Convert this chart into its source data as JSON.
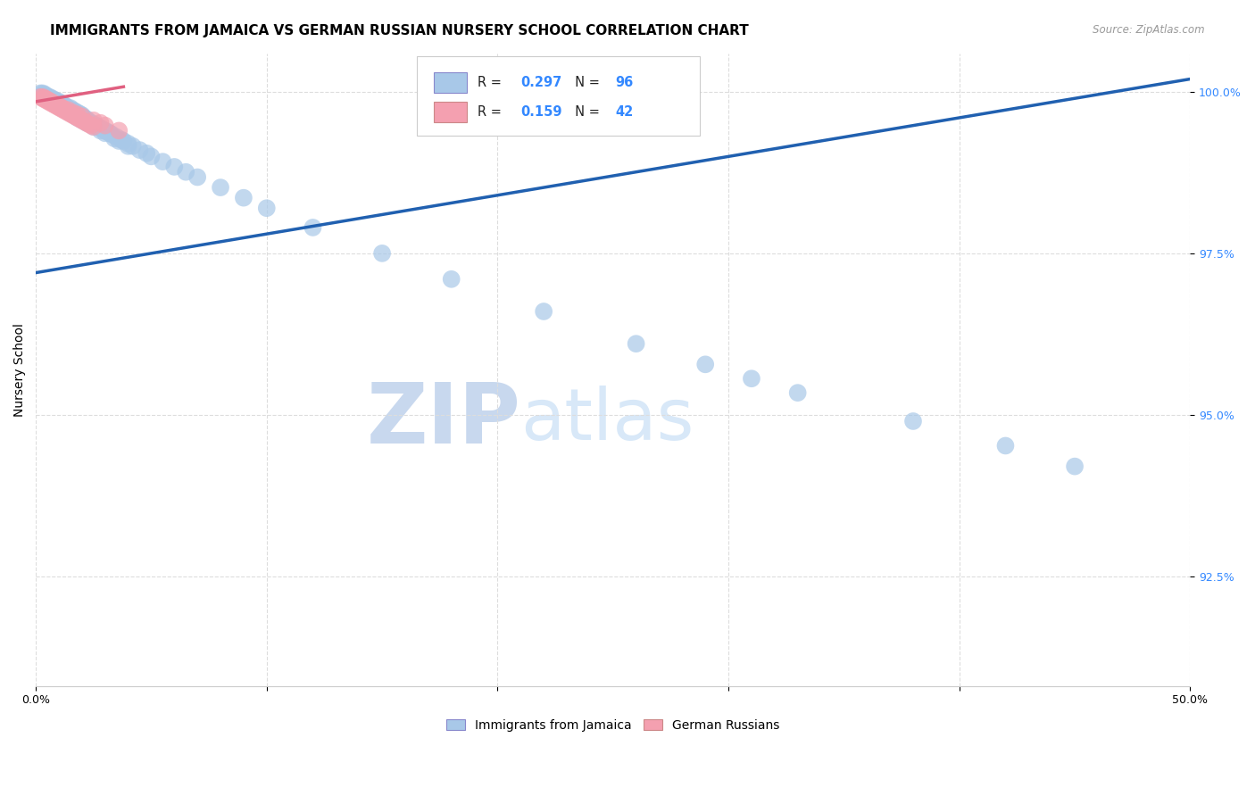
{
  "title": "IMMIGRANTS FROM JAMAICA VS GERMAN RUSSIAN NURSERY SCHOOL CORRELATION CHART",
  "source": "Source: ZipAtlas.com",
  "ylabel": "Nursery School",
  "ytick_labels": [
    "100.0%",
    "97.5%",
    "95.0%",
    "92.5%"
  ],
  "ytick_values": [
    1.0,
    0.975,
    0.95,
    0.925
  ],
  "xlim": [
    0.0,
    0.5
  ],
  "ylim": [
    0.908,
    1.006
  ],
  "legend_blue_label": "Immigrants from Jamaica",
  "legend_pink_label": "German Russians",
  "R_blue": "0.297",
  "N_blue": "96",
  "R_pink": "0.159",
  "N_pink": "42",
  "blue_color": "#a8c8e8",
  "pink_color": "#f4a0b0",
  "blue_line_color": "#2060b0",
  "pink_line_color": "#e06080",
  "watermark_zip": "ZIP",
  "watermark_atlas": "atlas",
  "blue_scatter_x": [
    0.002,
    0.003,
    0.004,
    0.005,
    0.005,
    0.006,
    0.006,
    0.007,
    0.007,
    0.008,
    0.008,
    0.009,
    0.009,
    0.01,
    0.01,
    0.011,
    0.011,
    0.012,
    0.012,
    0.013,
    0.013,
    0.014,
    0.014,
    0.015,
    0.015,
    0.016,
    0.016,
    0.017,
    0.017,
    0.018,
    0.018,
    0.019,
    0.019,
    0.02,
    0.02,
    0.021,
    0.021,
    0.022,
    0.022,
    0.023,
    0.024,
    0.025,
    0.026,
    0.027,
    0.028,
    0.029,
    0.03,
    0.031,
    0.032,
    0.033,
    0.035,
    0.037,
    0.038,
    0.04,
    0.042,
    0.045,
    0.048,
    0.05,
    0.055,
    0.06,
    0.065,
    0.07,
    0.08,
    0.09,
    0.1,
    0.12,
    0.15,
    0.18,
    0.22,
    0.26,
    0.29,
    0.31,
    0.33,
    0.38,
    0.42,
    0.45,
    0.003,
    0.004,
    0.005,
    0.006,
    0.007,
    0.008,
    0.009,
    0.01,
    0.012,
    0.014,
    0.016,
    0.018,
    0.02,
    0.022,
    0.025,
    0.028,
    0.03,
    0.034,
    0.036,
    0.04
  ],
  "blue_scatter_y": [
    0.9998,
    0.9996,
    0.9994,
    0.9992,
    0.999,
    0.9992,
    0.9988,
    0.999,
    0.9986,
    0.9988,
    0.9985,
    0.9986,
    0.9983,
    0.9985,
    0.9982,
    0.9982,
    0.998,
    0.998,
    0.9978,
    0.9978,
    0.9976,
    0.9975,
    0.9973,
    0.9975,
    0.9972,
    0.9972,
    0.997,
    0.997,
    0.9968,
    0.9968,
    0.9966,
    0.9966,
    0.9964,
    0.9964,
    0.9962,
    0.996,
    0.9958,
    0.9958,
    0.9956,
    0.9954,
    0.9952,
    0.995,
    0.9948,
    0.9946,
    0.9944,
    0.9942,
    0.994,
    0.9938,
    0.9936,
    0.9934,
    0.993,
    0.9926,
    0.9924,
    0.992,
    0.9916,
    0.991,
    0.9905,
    0.99,
    0.9892,
    0.9884,
    0.9876,
    0.9868,
    0.9852,
    0.9836,
    0.982,
    0.979,
    0.975,
    0.971,
    0.966,
    0.961,
    0.9578,
    0.9556,
    0.9534,
    0.949,
    0.9452,
    0.942,
    0.9998,
    0.9996,
    0.9993,
    0.999,
    0.9987,
    0.9984,
    0.9982,
    0.9979,
    0.9974,
    0.9969,
    0.9965,
    0.996,
    0.9956,
    0.9952,
    0.9946,
    0.994,
    0.9936,
    0.9928,
    0.9924,
    0.9916
  ],
  "pink_scatter_x": [
    0.002,
    0.003,
    0.004,
    0.005,
    0.006,
    0.007,
    0.008,
    0.009,
    0.01,
    0.011,
    0.012,
    0.013,
    0.014,
    0.015,
    0.016,
    0.017,
    0.018,
    0.019,
    0.02,
    0.021,
    0.022,
    0.023,
    0.024,
    0.025,
    0.003,
    0.004,
    0.005,
    0.006,
    0.007,
    0.008,
    0.009,
    0.01,
    0.011,
    0.012,
    0.014,
    0.016,
    0.018,
    0.02,
    0.025,
    0.028,
    0.03,
    0.036
  ],
  "pink_scatter_y": [
    0.9992,
    0.999,
    0.9988,
    0.9986,
    0.9984,
    0.9982,
    0.998,
    0.9978,
    0.9976,
    0.9974,
    0.9972,
    0.997,
    0.9968,
    0.9966,
    0.9964,
    0.9962,
    0.996,
    0.9958,
    0.9956,
    0.9954,
    0.9952,
    0.995,
    0.9948,
    0.9946,
    0.9992,
    0.999,
    0.9988,
    0.9986,
    0.9984,
    0.9982,
    0.998,
    0.9978,
    0.9976,
    0.9974,
    0.9972,
    0.9968,
    0.9965,
    0.9962,
    0.9956,
    0.9952,
    0.9948,
    0.994
  ],
  "blue_line_x": [
    0.0,
    0.5
  ],
  "blue_line_y": [
    0.972,
    1.002
  ],
  "pink_line_x": [
    0.0,
    0.038
  ],
  "pink_line_y": [
    0.9985,
    1.0008
  ],
  "grid_color": "#dddddd",
  "background_color": "#ffffff",
  "title_fontsize": 11,
  "axis_fontsize": 10,
  "tick_fontsize": 9,
  "watermark_color_zip": "#c8d8ee",
  "watermark_color_atlas": "#d8e8f8"
}
